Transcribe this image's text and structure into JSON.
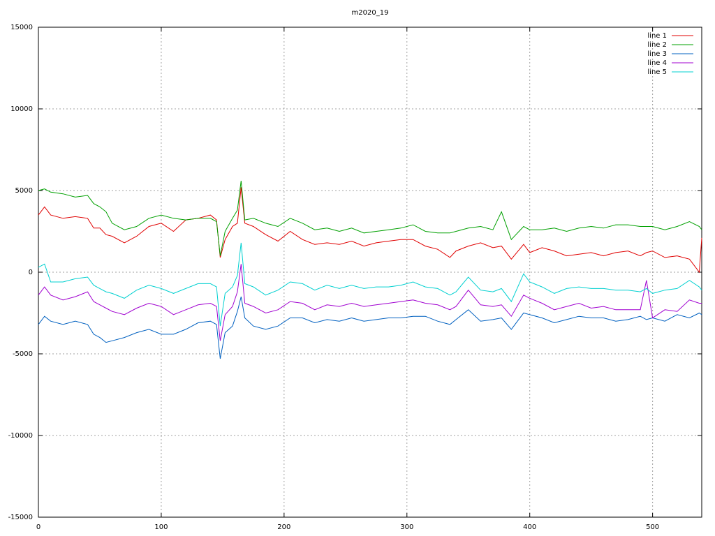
{
  "chart_data": {
    "type": "line",
    "title": "m2020_19",
    "x": [
      0,
      5,
      10,
      20,
      30,
      40,
      45,
      50,
      55,
      60,
      70,
      80,
      90,
      100,
      110,
      120,
      130,
      140,
      145,
      148,
      152,
      158,
      162,
      165,
      168,
      175,
      185,
      195,
      205,
      215,
      225,
      235,
      245,
      255,
      265,
      275,
      285,
      295,
      305,
      315,
      325,
      335,
      340,
      350,
      360,
      370,
      377,
      385,
      395,
      400,
      410,
      420,
      430,
      440,
      450,
      460,
      470,
      480,
      490,
      495,
      500,
      510,
      520,
      530,
      538,
      540
    ],
    "series": [
      {
        "name": "line 1",
        "color": "#e00000",
        "values": [
          3500,
          4000,
          3500,
          3300,
          3400,
          3300,
          2700,
          2700,
          2300,
          2200,
          1800,
          2200,
          2800,
          3000,
          2500,
          3200,
          3300,
          3500,
          3200,
          900,
          2000,
          2800,
          3000,
          5200,
          3000,
          2800,
          2300,
          1900,
          2500,
          2000,
          1700,
          1800,
          1700,
          1900,
          1600,
          1800,
          1900,
          2000,
          2000,
          1600,
          1400,
          900,
          1300,
          1600,
          1800,
          1500,
          1600,
          800,
          1700,
          1200,
          1500,
          1300,
          1000,
          1100,
          1200,
          1000,
          1200,
          1300,
          1000,
          1200,
          1300,
          900,
          1000,
          800,
          0,
          2100
        ]
      },
      {
        "name": "line 2",
        "color": "#00a000",
        "values": [
          5000,
          5100,
          4900,
          4800,
          4600,
          4700,
          4200,
          4000,
          3700,
          3000,
          2600,
          2800,
          3300,
          3500,
          3300,
          3200,
          3300,
          3300,
          3100,
          1000,
          2500,
          3300,
          3800,
          5600,
          3200,
          3300,
          3000,
          2800,
          3300,
          3000,
          2600,
          2700,
          2500,
          2700,
          2400,
          2500,
          2600,
          2700,
          2900,
          2500,
          2400,
          2400,
          2500,
          2700,
          2800,
          2600,
          3700,
          2000,
          2800,
          2600,
          2600,
          2700,
          2500,
          2700,
          2800,
          2700,
          2900,
          2900,
          2800,
          2800,
          2800,
          2600,
          2800,
          3100,
          2800,
          2600
        ]
      },
      {
        "name": "line 3",
        "color": "#0060c0",
        "values": [
          -3200,
          -2700,
          -3000,
          -3200,
          -3000,
          -3200,
          -3800,
          -4000,
          -4300,
          -4200,
          -4000,
          -3700,
          -3500,
          -3800,
          -3800,
          -3500,
          -3100,
          -3000,
          -3200,
          -5300,
          -3700,
          -3300,
          -2400,
          -1500,
          -2800,
          -3300,
          -3500,
          -3300,
          -2800,
          -2800,
          -3100,
          -2900,
          -3000,
          -2800,
          -3000,
          -2900,
          -2800,
          -2800,
          -2700,
          -2700,
          -3000,
          -3200,
          -2900,
          -2300,
          -3000,
          -2900,
          -2800,
          -3500,
          -2500,
          -2600,
          -2800,
          -3100,
          -2900,
          -2700,
          -2800,
          -2800,
          -3000,
          -2900,
          -2700,
          -2900,
          -2800,
          -3000,
          -2600,
          -2800,
          -2500,
          -2600
        ]
      },
      {
        "name": "line 4",
        "color": "#a000d0",
        "values": [
          -1400,
          -900,
          -1400,
          -1700,
          -1500,
          -1200,
          -1800,
          -2000,
          -2200,
          -2400,
          -2600,
          -2200,
          -1900,
          -2100,
          -2600,
          -2300,
          -2000,
          -1900,
          -2100,
          -4200,
          -2600,
          -2100,
          -1200,
          500,
          -1900,
          -2100,
          -2500,
          -2300,
          -1800,
          -1900,
          -2300,
          -2000,
          -2100,
          -1900,
          -2100,
          -2000,
          -1900,
          -1800,
          -1700,
          -1900,
          -2000,
          -2300,
          -2100,
          -1100,
          -2000,
          -2100,
          -2000,
          -2700,
          -1400,
          -1600,
          -1900,
          -2300,
          -2100,
          -1900,
          -2200,
          -2100,
          -2300,
          -2300,
          -2300,
          -500,
          -2800,
          -2300,
          -2400,
          -1700,
          -1900,
          -1900
        ]
      },
      {
        "name": "line 5",
        "color": "#00d0d0",
        "values": [
          300,
          500,
          -600,
          -600,
          -400,
          -300,
          -800,
          -1000,
          -1200,
          -1300,
          -1600,
          -1100,
          -800,
          -1000,
          -1300,
          -1000,
          -700,
          -700,
          -900,
          -3300,
          -1300,
          -900,
          -200,
          1800,
          -700,
          -900,
          -1400,
          -1100,
          -600,
          -700,
          -1100,
          -800,
          -1000,
          -800,
          -1000,
          -900,
          -900,
          -800,
          -600,
          -900,
          -1000,
          -1400,
          -1200,
          -300,
          -1100,
          -1200,
          -1000,
          -1800,
          -100,
          -600,
          -900,
          -1300,
          -1000,
          -900,
          -1000,
          -1000,
          -1100,
          -1100,
          -1200,
          -1000,
          -1300,
          -1100,
          -1000,
          -500,
          -900,
          -1100
        ]
      }
    ],
    "xlim": [
      0,
      540
    ],
    "xticks": [
      0,
      100,
      200,
      300,
      400,
      500
    ],
    "ylim": [
      -15000,
      15000
    ],
    "yticks": [
      -15000,
      -10000,
      -5000,
      0,
      5000,
      10000,
      15000
    ],
    "grid": true,
    "legend": "top-right"
  }
}
